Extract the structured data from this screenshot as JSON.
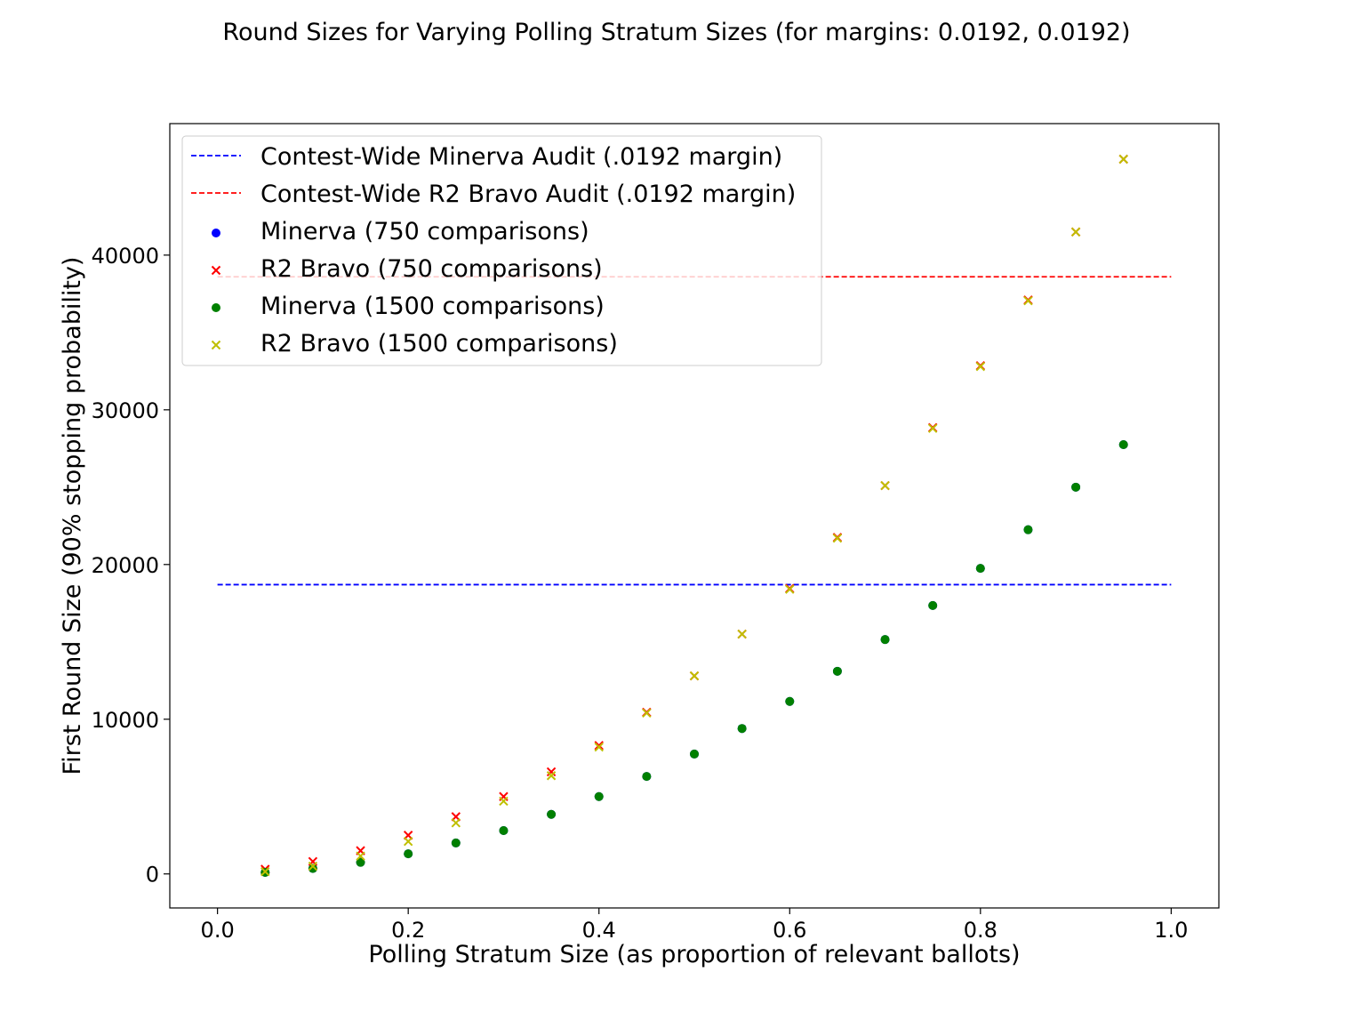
{
  "chart_data": {
    "type": "scatter",
    "title": "Round Sizes for Varying Polling Stratum Sizes (for margins: 0.0192, 0.0192)",
    "xlabel": "Polling Stratum Size (as proportion of relevant ballots)",
    "ylabel": "First Round Size (90% stopping probability)",
    "xlim": [
      -0.05,
      1.05
    ],
    "ylim": [
      -2200,
      48500
    ],
    "xticks": [
      0.0,
      0.2,
      0.4,
      0.6,
      0.8,
      1.0
    ],
    "xtick_labels": [
      "0.0",
      "0.2",
      "0.4",
      "0.6",
      "0.8",
      "1.0"
    ],
    "yticks": [
      0,
      10000,
      20000,
      30000,
      40000
    ],
    "ytick_labels": [
      "0",
      "10000",
      "20000",
      "30000",
      "40000"
    ],
    "grid": false,
    "legend_position": "upper-left",
    "hlines": [
      {
        "name": "Contest-Wide Minerva Audit (.0192 margin)",
        "y": 18700,
        "x_range": [
          0.0,
          1.0
        ],
        "color": "#0000ff",
        "style": "dashed"
      },
      {
        "name": "Contest-Wide R2 Bravo Audit (.0192 margin)",
        "y": 38600,
        "x_range": [
          0.0,
          1.0
        ],
        "color": "#ff0000",
        "style": "dashed"
      }
    ],
    "series": [
      {
        "name": "Minerva (750 comparisons)",
        "marker": "circle",
        "color": "#0000ff",
        "x": [
          0.05,
          0.1,
          0.15,
          0.2,
          0.25,
          0.3,
          0.35,
          0.4,
          0.45,
          0.5,
          0.55,
          0.6,
          0.65,
          0.7,
          0.75,
          0.8,
          0.85,
          0.9,
          0.95
        ],
        "y": [
          100,
          350,
          750,
          1300,
          2000,
          2800,
          3850,
          5000,
          6300,
          7750,
          9400,
          11150,
          13100,
          15150,
          17350,
          19750,
          22250,
          25000,
          27750
        ]
      },
      {
        "name": "R2 Bravo (750 comparisons)",
        "marker": "x",
        "color": "#ff0000",
        "x": [
          0.05,
          0.1,
          0.15,
          0.2,
          0.25,
          0.3,
          0.35,
          0.4,
          0.45,
          0.5,
          0.55,
          0.6,
          0.65,
          0.7,
          0.75,
          0.8,
          0.85,
          0.9,
          0.95
        ],
        "y": [
          300,
          800,
          1500,
          2500,
          3700,
          5000,
          6600,
          8300,
          10450,
          12800,
          15500,
          18450,
          21750,
          25100,
          28850,
          32850,
          37100,
          41500,
          46200
        ]
      },
      {
        "name": "Minerva (1500 comparisons)",
        "marker": "circle",
        "color": "#008000",
        "x": [
          0.05,
          0.1,
          0.15,
          0.2,
          0.25,
          0.3,
          0.35,
          0.4,
          0.45,
          0.5,
          0.55,
          0.6,
          0.65,
          0.7,
          0.75,
          0.8,
          0.85,
          0.9,
          0.95
        ],
        "y": [
          100,
          350,
          750,
          1300,
          2000,
          2800,
          3850,
          5000,
          6300,
          7750,
          9400,
          11150,
          13100,
          15150,
          17350,
          19750,
          22250,
          25000,
          27750
        ]
      },
      {
        "name": "R2 Bravo (1500 comparisons)",
        "marker": "x",
        "color": "#bfbf00",
        "x": [
          0.05,
          0.1,
          0.15,
          0.2,
          0.25,
          0.3,
          0.35,
          0.4,
          0.45,
          0.5,
          0.55,
          0.6,
          0.65,
          0.7,
          0.75,
          0.8,
          0.85,
          0.9,
          0.95
        ],
        "y": [
          150,
          500,
          1150,
          2100,
          3300,
          4700,
          6350,
          8200,
          10400,
          12800,
          15500,
          18400,
          21700,
          25100,
          28800,
          32800,
          37050,
          41500,
          46200
        ]
      }
    ],
    "legend_entries": [
      {
        "label": "Contest-Wide Minerva Audit (.0192 margin)",
        "kind": "line",
        "color": "#0000ff"
      },
      {
        "label": "Contest-Wide R2 Bravo Audit (.0192 margin)",
        "kind": "line",
        "color": "#ff0000"
      },
      {
        "label": "Minerva (750 comparisons)",
        "kind": "circle",
        "color": "#0000ff"
      },
      {
        "label": "R2 Bravo (750 comparisons)",
        "kind": "x",
        "color": "#ff0000"
      },
      {
        "label": "Minerva (1500 comparisons)",
        "kind": "circle",
        "color": "#008000"
      },
      {
        "label": "R2 Bravo (1500 comparisons)",
        "kind": "x",
        "color": "#bfbf00"
      }
    ]
  }
}
